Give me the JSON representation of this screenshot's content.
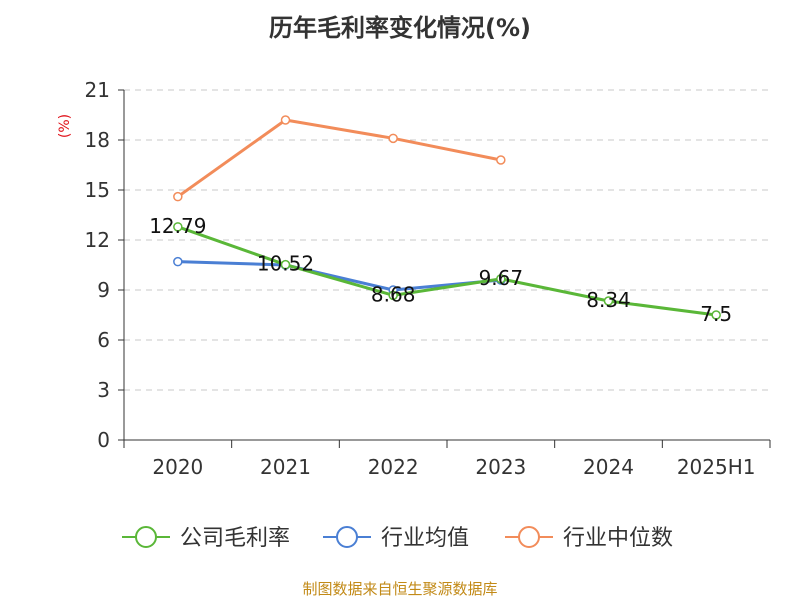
{
  "chart_data": {
    "type": "line",
    "title": "历年毛利率变化情况(%)",
    "unit_label": "(%)",
    "categories": [
      "2020",
      "2021",
      "2022",
      "2023",
      "2024",
      "2025H1"
    ],
    "yticks": [
      "0",
      "3",
      "6",
      "9",
      "12",
      "15",
      "18",
      "21"
    ],
    "ylim": [
      0,
      21
    ],
    "grid": true,
    "legend_position": "bottom",
    "series": [
      {
        "name": "公司毛利率",
        "color": "#5ab738",
        "values": [
          12.79,
          10.52,
          8.68,
          9.67,
          8.34,
          7.5
        ],
        "labels": [
          "12.79",
          "10.52",
          "8.68",
          "9.67",
          "8.34",
          "7.5"
        ]
      },
      {
        "name": "行业均值",
        "color": "#4a7fd4",
        "values": [
          10.7,
          10.5,
          9.0,
          9.6,
          null,
          null
        ]
      },
      {
        "name": "行业中位数",
        "color": "#f28c5a",
        "values": [
          14.6,
          19.2,
          18.1,
          16.8,
          null,
          null
        ]
      }
    ],
    "source": "制图数据来自恒生聚源数据库"
  }
}
